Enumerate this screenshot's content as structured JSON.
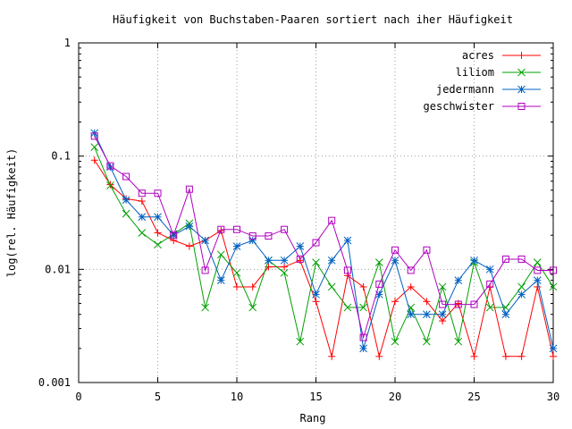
{
  "chart_data": {
    "type": "line",
    "title": "Häufigkeit von Buchstaben-Paaren sortiert nach iher Häufigkeit",
    "xlabel": "Rang",
    "ylabel": "log(rel. Häufigkeit)",
    "xlim": [
      0,
      30
    ],
    "ylim": [
      0.001,
      1
    ],
    "yscale": "log",
    "grid": true,
    "legend_position": "top-right",
    "x_ticks": [
      "0",
      "5",
      "10",
      "15",
      "20",
      "25",
      "30"
    ],
    "y_ticks": [
      "0.001",
      "0.01",
      "0.1",
      "1"
    ],
    "x": [
      1,
      2,
      3,
      4,
      5,
      6,
      7,
      8,
      9,
      10,
      11,
      12,
      13,
      14,
      15,
      16,
      17,
      18,
      19,
      20,
      21,
      22,
      23,
      24,
      25,
      26,
      27,
      28,
      29,
      30
    ],
    "series": [
      {
        "name": "acres",
        "color": "#ff0000",
        "marker": "plus",
        "values": [
          0.092,
          0.056,
          0.042,
          0.04,
          0.021,
          0.018,
          0.016,
          0.018,
          0.022,
          0.007,
          0.007,
          0.0105,
          0.0105,
          0.012,
          0.0052,
          0.0017,
          0.0088,
          0.007,
          0.0017,
          0.0052,
          0.007,
          0.0052,
          0.0035,
          0.005,
          0.0017,
          0.007,
          0.0017,
          0.0017,
          0.007,
          0.0017
        ]
      },
      {
        "name": "liliom",
        "color": "#00a000",
        "marker": "x",
        "values": [
          0.12,
          0.055,
          0.031,
          0.021,
          0.0165,
          0.0205,
          0.0255,
          0.0046,
          0.0135,
          0.0093,
          0.0046,
          0.012,
          0.0093,
          0.0023,
          0.0115,
          0.007,
          0.0046,
          0.0046,
          0.0115,
          0.0023,
          0.0046,
          0.0023,
          0.007,
          0.0023,
          0.0115,
          0.0046,
          0.0046,
          0.007,
          0.0115,
          0.007
        ]
      },
      {
        "name": "jedermann",
        "color": "#0060c0",
        "marker": "star",
        "values": [
          0.16,
          0.08,
          0.041,
          0.029,
          0.029,
          0.02,
          0.024,
          0.018,
          0.008,
          0.016,
          0.018,
          0.012,
          0.012,
          0.016,
          0.006,
          0.012,
          0.018,
          0.002,
          0.006,
          0.012,
          0.004,
          0.004,
          0.004,
          0.008,
          0.012,
          0.01,
          0.004,
          0.006,
          0.008,
          0.002
        ]
      },
      {
        "name": "geschwister",
        "color": "#b000c0",
        "marker": "square",
        "values": [
          0.15,
          0.082,
          0.066,
          0.047,
          0.047,
          0.02,
          0.051,
          0.0098,
          0.0225,
          0.0225,
          0.0197,
          0.0197,
          0.0225,
          0.0123,
          0.0172,
          0.027,
          0.0098,
          0.0025,
          0.0074,
          0.0148,
          0.0098,
          0.0148,
          0.0049,
          0.0049,
          0.0049,
          0.0074,
          0.0123,
          0.0123,
          0.0098,
          0.0098
        ]
      }
    ]
  }
}
